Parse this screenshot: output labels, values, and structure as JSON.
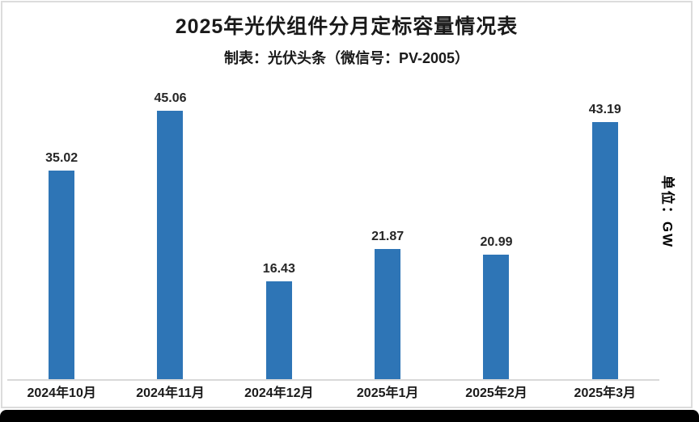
{
  "chart_data": {
    "type": "bar",
    "title": "2025年光伏组件分月定标容量情况表",
    "subtitle": "制表：光伏头条（微信号：PV-2005）",
    "unit_label": "单位：GW",
    "categories": [
      "2024年10月",
      "2024年11月",
      "2024年12月",
      "2025年1月",
      "2025年2月",
      "2025年3月"
    ],
    "values": [
      35.02,
      45.06,
      16.43,
      21.87,
      20.99,
      43.19
    ],
    "xlabel": "",
    "ylabel": "GW",
    "ylim": [
      0,
      50
    ],
    "grid": false,
    "legend": false,
    "bar_color": "#2E75B6",
    "axis_color": "#D9D9D9",
    "text_color": "#1A1A1A",
    "frame_border_color": "#DCDCDC",
    "bottom_bar_color": "#000000"
  }
}
